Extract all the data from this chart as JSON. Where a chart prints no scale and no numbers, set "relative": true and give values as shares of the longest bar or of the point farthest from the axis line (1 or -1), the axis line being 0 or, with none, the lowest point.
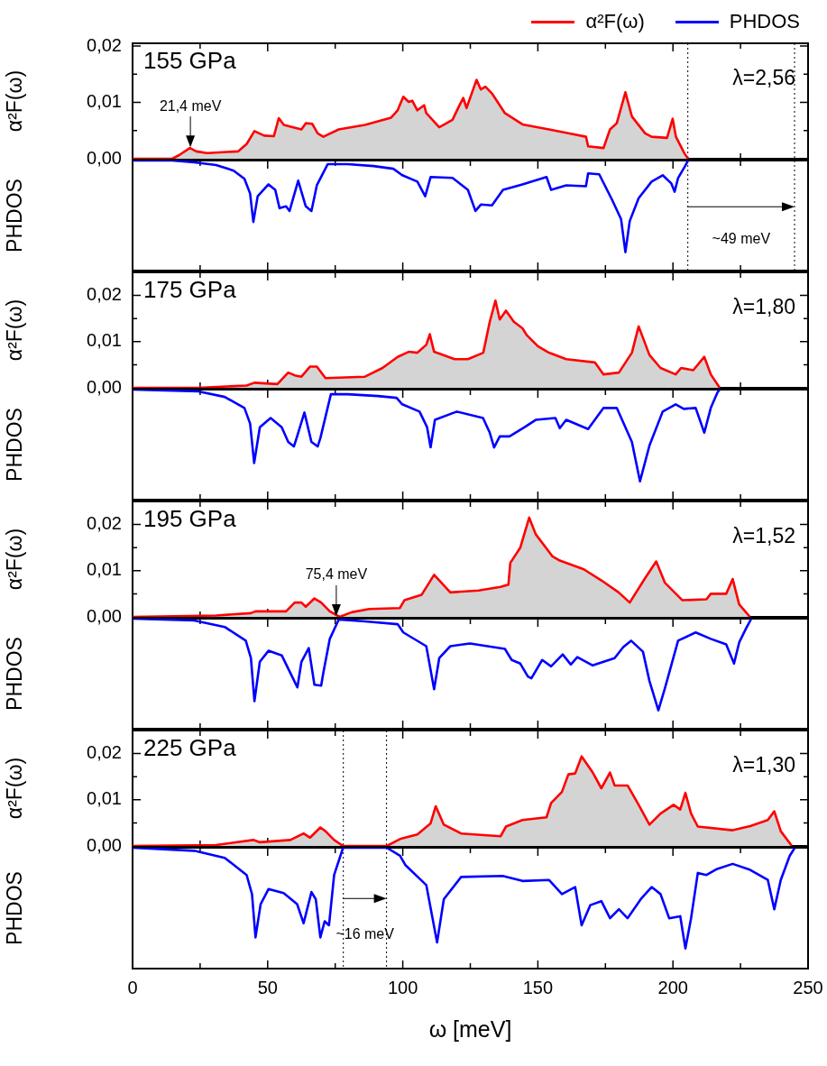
{
  "chart_data": [
    {
      "type": "area",
      "ylabel": "α²F(ω)",
      "xlim": [
        0,
        250
      ],
      "xticks": [
        0,
        {
          "value": 25,
          "label": null
        },
        50,
        {
          "value": 75,
          "label": null
        },
        100,
        {
          "value": 125,
          "label": null
        },
        150,
        {
          "value": 175,
          "label": null
        },
        200,
        {
          "value": 225,
          "label": null
        },
        250
      ],
      "ylim": [
        0,
        0.0205
      ],
      "yticks": [
        {
          "value": 0,
          "label": "0,00"
        },
        {
          "value": 0.005,
          "label": null
        },
        {
          "value": 0.01,
          "label": "0,01"
        },
        {
          "value": 0.015,
          "label": null
        },
        {
          "value": 0.02,
          "label": "0,02"
        }
      ],
      "tick_labels": "y",
      "legend": "top right",
      "annotations": [
        "155 GPa",
        "λ=2,56",
        {
          "text": "21,4 meV",
          "x": 21.4,
          "y": 0.0019
        }
      ],
      "ref_lines": [
        {
          "axis": "x",
          "value": 205.5,
          "color": "#000000",
          "line_style": "dotted"
        },
        {
          "axis": "x",
          "value": 245,
          "color": "#000000",
          "line_style": "dotted"
        }
      ],
      "series": [
        {
          "name": "α²F(ω)",
          "color": "#ff0000",
          "x": [
            0,
            14.7,
            17.1,
            21.2,
            23.6,
            27.6,
            39,
            42.2,
            45.1,
            48.7,
            52.3,
            54.1,
            56,
            59.2,
            62.5,
            64.1,
            66.5,
            68.5,
            70.6,
            76.3,
            86,
            95.7,
            98.1,
            100.2,
            102.2,
            103.5,
            105.4,
            107.9,
            108.7,
            113.5,
            118.4,
            120.8,
            122.4,
            123.6,
            127.3,
            128.9,
            130.6,
            133,
            137.8,
            144.3,
            154.1,
            160.5,
            167.8,
            168.6,
            174.3,
            176.7,
            179.2,
            182.4,
            184.8,
            189.7,
            192.1,
            197.8,
            199.9,
            201.1,
            204.3,
            205.6
          ],
          "values": [
            0,
            0,
            0.0006,
            0.0019,
            0.0013,
            0.001,
            0.0013,
            0.0026,
            0.0049,
            0.0041,
            0.004,
            0.0072,
            0.006,
            0.0056,
            0.0052,
            0.0063,
            0.0062,
            0.0045,
            0.0039,
            0.0052,
            0.006,
            0.0073,
            0.0086,
            0.011,
            0.0101,
            0.0103,
            0.0086,
            0.0095,
            0.0081,
            0.0056,
            0.0069,
            0.0093,
            0.0108,
            0.009,
            0.014,
            0.0123,
            0.0128,
            0.0116,
            0.0081,
            0.0061,
            0.0052,
            0.0046,
            0.0039,
            0.0022,
            0.0019,
            0.0052,
            0.0063,
            0.0118,
            0.0075,
            0.0045,
            0.0039,
            0.0037,
            0.0071,
            0.0039,
            0.0009,
            0
          ]
        }
      ]
    },
    {
      "type": "line",
      "relative": true,
      "ylabel": "PHDOS",
      "xlim": [
        0,
        250
      ],
      "xticks": [
        0,
        {
          "value": 25,
          "label": null
        },
        50,
        {
          "value": 75,
          "label": null
        },
        100,
        {
          "value": 125,
          "label": null
        },
        150,
        {
          "value": 175,
          "label": null
        },
        200,
        {
          "value": 225,
          "label": null
        },
        250
      ],
      "tick_labels": false,
      "legend": "top right",
      "annotations": [
        "~49 meV"
      ],
      "ref_lines": [
        {
          "axis": "x",
          "value": 205.5,
          "color": "#000000",
          "line_style": "dotted"
        },
        {
          "axis": "x",
          "value": 245,
          "color": "#000000",
          "line_style": "dotted"
        }
      ],
      "series": [
        {
          "name": "PHDOS",
          "color": "#0000ff",
          "x": [
            0,
            14.7,
            22.8,
            30.9,
            37.4,
            41.4,
            43.5,
            44.7,
            46.3,
            50.3,
            52.8,
            54.4,
            56.8,
            58.1,
            61.3,
            64.1,
            66.2,
            68.2,
            72.2,
            79.5,
            89.2,
            96.5,
            99.8,
            105.4,
            108.3,
            110.3,
            118.4,
            124.1,
            126.9,
            128.9,
            133,
            137.1,
            144.3,
            153.2,
            154.9,
            160.5,
            167.8,
            168.6,
            172.7,
            177.5,
            180.8,
            182.4,
            184,
            187.3,
            192.1,
            196.2,
            199.4,
            200.6,
            201.9,
            204.3,
            205.6
          ],
          "values": [
            0,
            0,
            -0.02,
            -0.05,
            -0.11,
            -0.2,
            -0.36,
            -0.67,
            -0.39,
            -0.26,
            -0.32,
            -0.52,
            -0.5,
            -0.55,
            -0.22,
            -0.5,
            -0.55,
            -0.27,
            -0.04,
            -0.04,
            -0.06,
            -0.09,
            -0.16,
            -0.23,
            -0.39,
            -0.18,
            -0.19,
            -0.32,
            -0.55,
            -0.48,
            -0.49,
            -0.32,
            -0.26,
            -0.18,
            -0.32,
            -0.27,
            -0.28,
            -0.14,
            -0.15,
            -0.43,
            -0.64,
            -1,
            -0.66,
            -0.41,
            -0.23,
            -0.16,
            -0.25,
            -0.34,
            -0.19,
            -0.07,
            0
          ]
        }
      ]
    },
    {
      "type": "area",
      "ylabel": "α²F(ω)",
      "xlim": [
        0,
        250
      ],
      "xticks": [
        0,
        {
          "value": 25,
          "label": null
        },
        50,
        {
          "value": 75,
          "label": null
        },
        100,
        {
          "value": 125,
          "label": null
        },
        150,
        {
          "value": 175,
          "label": null
        },
        200,
        {
          "value": 225,
          "label": null
        },
        250
      ],
      "ylim": [
        0,
        0.025
      ],
      "yticks": [
        {
          "value": 0,
          "label": "0,00"
        },
        {
          "value": 0.005,
          "label": null
        },
        {
          "value": 0.01,
          "label": "0,01"
        },
        {
          "value": 0.015,
          "label": null
        },
        {
          "value": 0.02,
          "label": "0,02"
        }
      ],
      "tick_labels": "y",
      "annotations": [
        "175 GPa",
        "λ=1,80"
      ],
      "series": [
        {
          "color": "#ff0000",
          "x": [
            0,
            24.4,
            42.2,
            45.1,
            53.6,
            57.6,
            60,
            62.5,
            65.7,
            68.2,
            71.4,
            86,
            92.5,
            98.1,
            102.2,
            105.4,
            108.7,
            110,
            111.6,
            119.2,
            124.1,
            129.8,
            132.2,
            134.3,
            135.9,
            138.2,
            141.1,
            144.3,
            145.9,
            150,
            154.1,
            160.5,
            171.1,
            174.3,
            180,
            184.8,
            187.3,
            191.3,
            195.4,
            201,
            203,
            207.5,
            211.6,
            214,
            217.3
          ],
          "values": [
            0,
            0,
            0.0005,
            0.0011,
            0.0008,
            0.0033,
            0.0027,
            0.0024,
            0.0046,
            0.0046,
            0.0021,
            0.0024,
            0.0043,
            0.0067,
            0.0078,
            0.0076,
            0.0093,
            0.0116,
            0.0078,
            0.0062,
            0.0062,
            0.0076,
            0.0143,
            0.0189,
            0.0148,
            0.0167,
            0.0143,
            0.0129,
            0.0114,
            0.009,
            0.0076,
            0.0062,
            0.0055,
            0.0029,
            0.0033,
            0.0076,
            0.0133,
            0.0071,
            0.0043,
            0.0029,
            0.0043,
            0.0038,
            0.0067,
            0.0029,
            0
          ]
        }
      ]
    },
    {
      "type": "line",
      "relative": true,
      "ylabel": "PHDOS",
      "xlim": [
        0,
        250
      ],
      "xticks": [
        0,
        {
          "value": 25,
          "label": null
        },
        50,
        {
          "value": 75,
          "label": null
        },
        100,
        {
          "value": 125,
          "label": null
        },
        150,
        {
          "value": 175,
          "label": null
        },
        200,
        {
          "value": 225,
          "label": null
        },
        250
      ],
      "tick_labels": false,
      "series": [
        {
          "color": "#0000ff",
          "x": [
            0,
            24.4,
            34.1,
            41.4,
            43.5,
            45,
            47.1,
            51.1,
            55.2,
            57.6,
            59.7,
            60.9,
            63.6,
            66.2,
            68.5,
            69.5,
            73.4,
            79.5,
            90.8,
            97.7,
            99.8,
            106.2,
            109,
            110.3,
            111.9,
            120,
            129.7,
            132.2,
            133.8,
            135.9,
            139.5,
            145.1,
            149.2,
            156.5,
            158.1,
            160.5,
            168.6,
            174.3,
            179.2,
            184.8,
            187.8,
            191.3,
            196.2,
            201,
            204,
            208.4,
            211.6,
            214,
            216.5,
            217.3
          ],
          "values": [
            0,
            -0.02,
            -0.08,
            -0.2,
            -0.37,
            -0.8,
            -0.41,
            -0.31,
            -0.41,
            -0.57,
            -0.62,
            -0.51,
            -0.25,
            -0.57,
            -0.62,
            -0.53,
            -0.05,
            -0.05,
            -0.07,
            -0.09,
            -0.16,
            -0.24,
            -0.41,
            -0.63,
            -0.33,
            -0.24,
            -0.31,
            -0.47,
            -0.63,
            -0.51,
            -0.51,
            -0.41,
            -0.33,
            -0.31,
            -0.42,
            -0.33,
            -0.43,
            -0.2,
            -0.2,
            -0.57,
            -1,
            -0.61,
            -0.24,
            -0.16,
            -0.21,
            -0.2,
            -0.47,
            -0.2,
            -0.03,
            0
          ]
        }
      ]
    },
    {
      "type": "area",
      "ylabel": "α²F(ω)",
      "xlim": [
        0,
        250
      ],
      "xticks": [
        0,
        {
          "value": 25,
          "label": null
        },
        50,
        {
          "value": 75,
          "label": null
        },
        100,
        {
          "value": 125,
          "label": null
        },
        150,
        {
          "value": 175,
          "label": null
        },
        200,
        {
          "value": 225,
          "label": null
        },
        250
      ],
      "ylim": [
        0,
        0.025
      ],
      "yticks": [
        {
          "value": 0,
          "label": "0,00"
        },
        {
          "value": 0.005,
          "label": null
        },
        {
          "value": 0.01,
          "label": "0,01"
        },
        {
          "value": 0.015,
          "label": null
        },
        {
          "value": 0.02,
          "label": "0,02"
        }
      ],
      "tick_labels": "y",
      "annotations": [
        "195 GPa",
        "λ=1,52",
        {
          "text": "75,4 meV",
          "x": 75.4,
          "y": 0
        }
      ],
      "series": [
        {
          "color": "#ff0000",
          "x": [
            0,
            30.9,
            43.8,
            45.5,
            56.8,
            60,
            62.5,
            64.1,
            67.3,
            69.8,
            73,
            76.6,
            81.1,
            87.6,
            98.9,
            100.6,
            107,
            111.6,
            114.3,
            117.6,
            128.1,
            136.2,
            139.1,
            139.8,
            143.5,
            146.8,
            149.2,
            154.1,
            155.4,
            158.1,
            167,
            173.5,
            179.9,
            184,
            189.7,
            193.8,
            197,
            203.5,
            212.4,
            214,
            219.7,
            222.1,
            224.5,
            228.5
          ],
          "values": [
            0,
            0.0003,
            0.0008,
            0.0012,
            0.0012,
            0.0031,
            0.0031,
            0.0022,
            0.004,
            0.0031,
            0.0012,
            0,
            0.001,
            0.0017,
            0.0019,
            0.0036,
            0.0048,
            0.0091,
            0.0074,
            0.0053,
            0.0057,
            0.0065,
            0.007,
            0.0117,
            0.015,
            0.0215,
            0.0179,
            0.0141,
            0.0131,
            0.0122,
            0.0103,
            0.0079,
            0.0053,
            0.0031,
            0.0084,
            0.012,
            0.0074,
            0.0036,
            0.0038,
            0.005,
            0.005,
            0.0082,
            0.0027,
            0
          ]
        }
      ]
    },
    {
      "type": "line",
      "relative": true,
      "ylabel": "PHDOS",
      "xlim": [
        0,
        250
      ],
      "xticks": [
        0,
        {
          "value": 25,
          "label": null
        },
        50,
        {
          "value": 75,
          "label": null
        },
        100,
        {
          "value": 125,
          "label": null
        },
        150,
        {
          "value": 175,
          "label": null
        },
        200,
        {
          "value": 225,
          "label": null
        },
        250
      ],
      "tick_labels": false,
      "series": [
        {
          "color": "#0000ff",
          "x": [
            0,
            22.8,
            34.1,
            41.9,
            43.8,
            45.1,
            47.1,
            50.3,
            55.2,
            59.2,
            61,
            62.5,
            65.2,
            67.3,
            69.8,
            70.6,
            73,
            76.3,
            86,
            98.1,
            100.2,
            108.7,
            111.6,
            113.5,
            117.6,
            124.9,
            137.8,
            140.3,
            143.5,
            146.3,
            147.6,
            151.6,
            154.9,
            159.2,
            162.2,
            164.6,
            170.3,
            178.4,
            181.6,
            184.5,
            188.9,
            191.3,
            194.6,
            197,
            201.9,
            208.4,
            214,
            219.7,
            222.6,
            224.5,
            227,
            229
          ],
          "values": [
            0,
            -0.02,
            -0.09,
            -0.24,
            -0.43,
            -0.9,
            -0.47,
            -0.35,
            -0.4,
            -0.64,
            -0.75,
            -0.47,
            -0.32,
            -0.72,
            -0.73,
            -0.59,
            -0.22,
            -0.01,
            -0.03,
            -0.06,
            -0.15,
            -0.3,
            -0.77,
            -0.43,
            -0.3,
            -0.27,
            -0.33,
            -0.45,
            -0.49,
            -0.63,
            -0.65,
            -0.45,
            -0.52,
            -0.39,
            -0.5,
            -0.42,
            -0.51,
            -0.43,
            -0.31,
            -0.24,
            -0.36,
            -0.68,
            -1,
            -0.76,
            -0.24,
            -0.15,
            -0.22,
            -0.28,
            -0.49,
            -0.26,
            -0.11,
            0
          ]
        }
      ]
    },
    {
      "type": "area",
      "ylabel": "α²F(ω)",
      "xlim": [
        0,
        250
      ],
      "xticks": [
        0,
        {
          "value": 25,
          "label": null
        },
        50,
        {
          "value": 75,
          "label": null
        },
        100,
        {
          "value": 125,
          "label": null
        },
        150,
        {
          "value": 175,
          "label": null
        },
        200,
        {
          "value": 225,
          "label": null
        },
        250
      ],
      "ylim": [
        0,
        0.025
      ],
      "yticks": [
        {
          "value": 0,
          "label": "0,00"
        },
        {
          "value": 0.005,
          "label": null
        },
        {
          "value": 0.01,
          "label": "0,01"
        },
        {
          "value": 0.015,
          "label": null
        },
        {
          "value": 0.02,
          "label": "0,02"
        }
      ],
      "tick_labels": "y",
      "annotations": [
        "225 GPa",
        "λ=1,30"
      ],
      "ref_lines": [
        {
          "axis": "x",
          "value": 78,
          "color": "#000000",
          "line_style": "dotted"
        },
        {
          "axis": "x",
          "value": 94,
          "color": "#000000",
          "line_style": "dotted"
        }
      ],
      "series": [
        {
          "color": "#ff0000",
          "x": [
            0,
            30.9,
            44.7,
            47.1,
            58.4,
            63.3,
            65.7,
            69.5,
            71.4,
            74.6,
            77.9,
            94.1,
            99,
            105.4,
            110.3,
            112.2,
            115.2,
            121.6,
            136.2,
            138.2,
            144.3,
            153.2,
            154.9,
            158.9,
            161.3,
            163.8,
            166.2,
            170.3,
            173.5,
            176.7,
            178.4,
            183.2,
            187.3,
            191.3,
            195.4,
            200.2,
            202.7,
            204.6,
            206.7,
            209.2,
            222.1,
            228.6,
            235.1,
            237.5,
            239.9,
            244
          ],
          "values": [
            0,
            0.0002,
            0.0013,
            0.0008,
            0.0013,
            0.0027,
            0.0018,
            0.004,
            0.0032,
            0.0013,
            0,
            0,
            0.0015,
            0.0025,
            0.0049,
            0.0086,
            0.0046,
            0.0027,
            0.0021,
            0.0042,
            0.0056,
            0.0062,
            0.0093,
            0.0117,
            0.0155,
            0.0157,
            0.0194,
            0.0159,
            0.0125,
            0.0159,
            0.0131,
            0.0131,
            0.0089,
            0.0046,
            0.007,
            0.0089,
            0.0079,
            0.0115,
            0.007,
            0.0042,
            0.0034,
            0.0043,
            0.0056,
            0.0075,
            0.0032,
            0
          ]
        }
      ]
    },
    {
      "type": "line",
      "relative": true,
      "ylabel": "PHDOS",
      "xlabel": "ω [meV]",
      "xlim": [
        0,
        250
      ],
      "xticks": [
        0,
        {
          "value": 25,
          "label": null
        },
        50,
        {
          "value": 75,
          "label": null
        },
        100,
        {
          "value": 125,
          "label": null
        },
        150,
        {
          "value": 175,
          "label": null
        },
        200,
        {
          "value": 225,
          "label": null
        },
        250
      ],
      "tick_labels": "x",
      "annotations": [
        "~16 meV"
      ],
      "ref_lines": [
        {
          "axis": "x",
          "value": 78,
          "color": "#000000",
          "line_style": "dotted"
        },
        {
          "axis": "x",
          "value": 94,
          "color": "#000000",
          "line_style": "dotted"
        }
      ],
      "series": [
        {
          "color": "#0000ff",
          "x": [
            0,
            22.8,
            34.1,
            42.2,
            44.2,
            45.5,
            47.4,
            50.3,
            55.9,
            60.9,
            63.3,
            66.2,
            67.8,
            69.5,
            71.1,
            72.7,
            74.6,
            77.9,
            94.1,
            99,
            100.9,
            108.7,
            112.7,
            115.2,
            121.6,
            137,
            144.3,
            154.1,
            158.9,
            163.8,
            166.2,
            169.4,
            173.5,
            176.7,
            180,
            183.2,
            188.1,
            192.1,
            195.4,
            198.6,
            202.7,
            204.6,
            206.7,
            209.2,
            212.4,
            216.4,
            222.1,
            228.6,
            235.1,
            237.5,
            239.9,
            243.2,
            245.1
          ],
          "values": [
            0,
            -0.03,
            -0.1,
            -0.27,
            -0.46,
            -0.89,
            -0.56,
            -0.41,
            -0.45,
            -0.56,
            -0.75,
            -0.44,
            -0.51,
            -0.89,
            -0.73,
            -0.77,
            -0.27,
            0,
            0,
            -0.08,
            -0.17,
            -0.37,
            -0.94,
            -0.51,
            -0.29,
            -0.28,
            -0.33,
            -0.32,
            -0.46,
            -0.39,
            -0.77,
            -0.57,
            -0.53,
            -0.7,
            -0.61,
            -0.7,
            -0.51,
            -0.39,
            -0.46,
            -0.7,
            -0.68,
            -1,
            -0.7,
            -0.25,
            -0.27,
            -0.21,
            -0.16,
            -0.22,
            -0.32,
            -0.61,
            -0.32,
            -0.08,
            0
          ]
        }
      ]
    }
  ]
}
